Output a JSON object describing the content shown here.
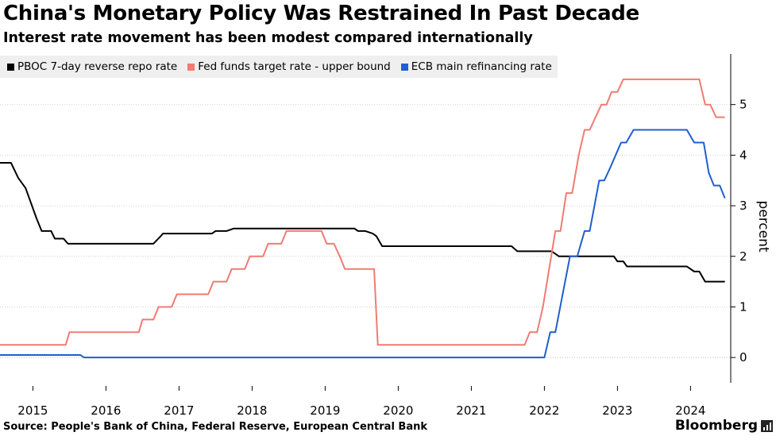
{
  "header": {
    "title": "China's Monetary Policy Was Restrained In Past Decade",
    "subtitle": "Interest rate movement has been modest compared internationally"
  },
  "footer": {
    "source": "Source: People's Bank of China, Federal Reserve, European Central Bank",
    "brand": "Bloomberg"
  },
  "chart_data": {
    "type": "line",
    "title": "China's Monetary Policy Was Restrained In Past Decade",
    "subtitle": "Interest rate movement has been modest compared internationally",
    "ylabel": "percent",
    "xlim": [
      2014.55,
      2024.55
    ],
    "ylim": [
      -0.5,
      6
    ],
    "y_ticks": [
      0,
      1,
      2,
      3,
      4,
      5
    ],
    "x_ticks": [
      2015,
      2016,
      2017,
      2018,
      2019,
      2020,
      2021,
      2022,
      2023,
      2024
    ],
    "x_tick_labels": [
      "2015",
      "2016",
      "2017",
      "2018",
      "2019",
      "2020",
      "2021",
      "2022",
      "2023",
      "2024"
    ],
    "grid": "horizontal-dotted",
    "legend_position": "top-left",
    "series": [
      {
        "name": "PBOC 7-day reverse repo rate",
        "color": "#000000",
        "points": [
          [
            2014.55,
            3.85
          ],
          [
            2014.7,
            3.85
          ],
          [
            2014.8,
            3.55
          ],
          [
            2014.9,
            3.35
          ],
          [
            2015.05,
            2.75
          ],
          [
            2015.12,
            2.5
          ],
          [
            2015.25,
            2.5
          ],
          [
            2015.3,
            2.35
          ],
          [
            2015.42,
            2.35
          ],
          [
            2015.48,
            2.25
          ],
          [
            2016.65,
            2.25
          ],
          [
            2016.75,
            2.4
          ],
          [
            2016.78,
            2.45
          ],
          [
            2017.45,
            2.45
          ],
          [
            2017.5,
            2.5
          ],
          [
            2017.65,
            2.5
          ],
          [
            2017.75,
            2.55
          ],
          [
            2019.4,
            2.55
          ],
          [
            2019.45,
            2.5
          ],
          [
            2019.55,
            2.5
          ],
          [
            2019.65,
            2.45
          ],
          [
            2019.7,
            2.4
          ],
          [
            2019.78,
            2.2
          ],
          [
            2021.45,
            2.2
          ],
          [
            2021.5,
            2.2
          ],
          [
            2021.55,
            2.2
          ],
          [
            2021.63,
            2.1
          ],
          [
            2022.05,
            2.1
          ],
          [
            2022.1,
            2.1
          ],
          [
            2022.2,
            2.0
          ],
          [
            2022.62,
            2.0
          ],
          [
            2022.95,
            2.0
          ],
          [
            2023.0,
            1.9
          ],
          [
            2023.08,
            1.9
          ],
          [
            2023.13,
            1.8
          ],
          [
            2023.95,
            1.8
          ],
          [
            2024.05,
            1.7
          ],
          [
            2024.12,
            1.7
          ],
          [
            2024.2,
            1.5
          ],
          [
            2024.47,
            1.5
          ]
        ]
      },
      {
        "name": "Fed funds target rate - upper bound",
        "color": "#f07b72",
        "points": [
          [
            2014.55,
            0.25
          ],
          [
            2015.45,
            0.25
          ],
          [
            2015.5,
            0.5
          ],
          [
            2016.45,
            0.5
          ],
          [
            2016.5,
            0.75
          ],
          [
            2016.65,
            0.75
          ],
          [
            2016.72,
            1.0
          ],
          [
            2016.9,
            1.0
          ],
          [
            2016.97,
            1.25
          ],
          [
            2017.4,
            1.25
          ],
          [
            2017.47,
            1.5
          ],
          [
            2017.65,
            1.5
          ],
          [
            2017.72,
            1.75
          ],
          [
            2017.9,
            1.75
          ],
          [
            2017.97,
            2.0
          ],
          [
            2018.15,
            2.0
          ],
          [
            2018.22,
            2.25
          ],
          [
            2018.4,
            2.25
          ],
          [
            2018.47,
            2.5
          ],
          [
            2018.95,
            2.5
          ],
          [
            2019.02,
            2.25
          ],
          [
            2019.12,
            2.25
          ],
          [
            2019.2,
            2.0
          ],
          [
            2019.27,
            1.75
          ],
          [
            2019.35,
            1.75
          ],
          [
            2019.67,
            1.75
          ],
          [
            2019.72,
            0.25
          ],
          [
            2021.73,
            0.25
          ],
          [
            2021.8,
            0.5
          ],
          [
            2021.9,
            0.5
          ],
          [
            2021.98,
            1.0
          ],
          [
            2022.15,
            2.5
          ],
          [
            2022.22,
            2.5
          ],
          [
            2022.3,
            3.25
          ],
          [
            2022.38,
            3.25
          ],
          [
            2022.47,
            4.0
          ],
          [
            2022.55,
            4.5
          ],
          [
            2022.62,
            4.5
          ],
          [
            2022.7,
            4.75
          ],
          [
            2022.78,
            5.0
          ],
          [
            2022.85,
            5.0
          ],
          [
            2022.92,
            5.25
          ],
          [
            2023.0,
            5.25
          ],
          [
            2023.08,
            5.5
          ],
          [
            2024.12,
            5.5
          ],
          [
            2024.2,
            5.0
          ],
          [
            2024.27,
            5.0
          ],
          [
            2024.35,
            4.75
          ],
          [
            2024.47,
            4.75
          ]
        ]
      },
      {
        "name": "ECB main refinancing rate",
        "color": "#1f5fcf",
        "points": [
          [
            2014.55,
            0.05
          ],
          [
            2015.65,
            0.05
          ],
          [
            2015.7,
            0.0
          ],
          [
            2022.0,
            0.0
          ],
          [
            2022.08,
            0.5
          ],
          [
            2022.15,
            0.5
          ],
          [
            2022.25,
            1.25
          ],
          [
            2022.35,
            2.0
          ],
          [
            2022.45,
            2.0
          ],
          [
            2022.55,
            2.5
          ],
          [
            2022.62,
            2.5
          ],
          [
            2022.75,
            3.5
          ],
          [
            2022.82,
            3.5
          ],
          [
            2022.9,
            3.75
          ],
          [
            2023.05,
            4.25
          ],
          [
            2023.12,
            4.25
          ],
          [
            2023.22,
            4.5
          ],
          [
            2023.95,
            4.5
          ],
          [
            2024.05,
            4.25
          ],
          [
            2024.18,
            4.25
          ],
          [
            2024.25,
            3.65
          ],
          [
            2024.32,
            3.4
          ],
          [
            2024.4,
            3.4
          ],
          [
            2024.47,
            3.15
          ]
        ]
      }
    ]
  }
}
